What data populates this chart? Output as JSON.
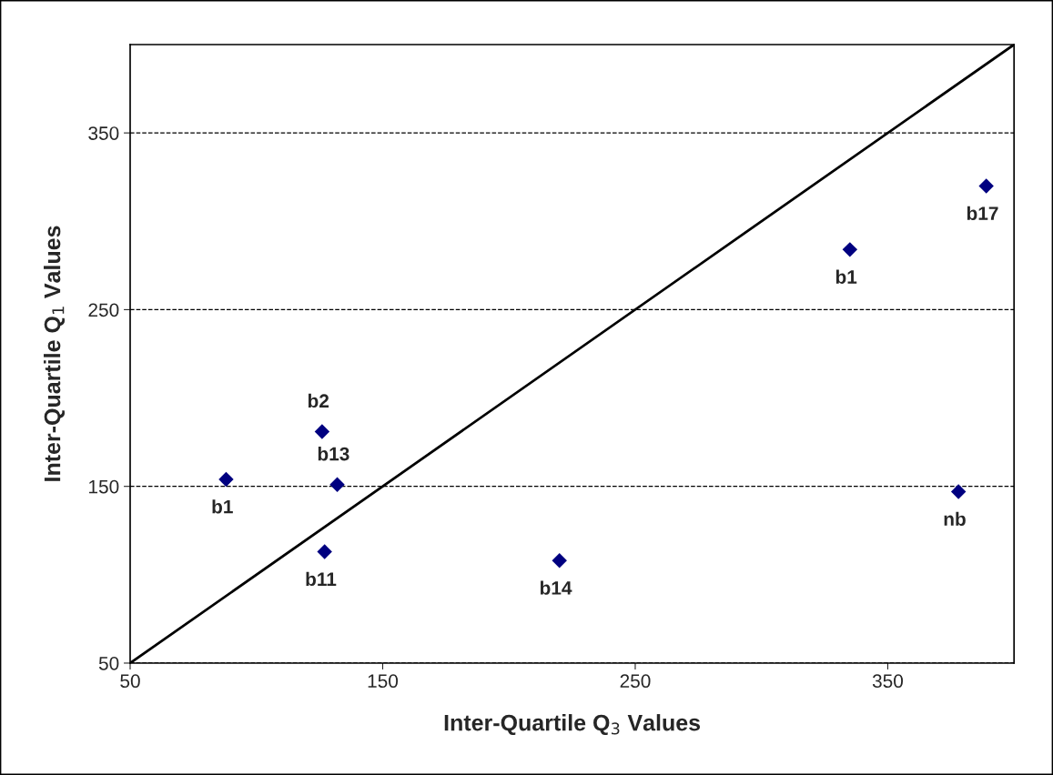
{
  "chart_data": {
    "type": "scatter",
    "xlabel": "Inter-Quartile Q$_{3}$ Values",
    "ylabel": "Inter-Quartile Q$_{1}$ Values",
    "xlim": [
      50,
      400
    ],
    "ylim": [
      50,
      400
    ],
    "xticks": [
      50,
      150,
      250,
      350
    ],
    "yticks": [
      50,
      150,
      250,
      350
    ],
    "grid": "y",
    "series": [
      {
        "color": "#000080",
        "marker": "diamond",
        "x": [
          88,
          126,
          132,
          127,
          220,
          335,
          389,
          378
        ],
        "values": [
          154,
          181,
          151,
          113,
          108,
          284,
          320,
          147
        ]
      },
      {
        "type": "line",
        "color": "#000000",
        "line_style": "solid",
        "x": [
          50,
          400
        ],
        "values": [
          50,
          400
        ]
      }
    ],
    "annotations": [
      {
        "text": "b1",
        "x": 88,
        "y": 154
      },
      {
        "text": "b2",
        "x": 126,
        "y": 181
      },
      {
        "text": "b13",
        "x": 132,
        "y": 151
      },
      {
        "text": "b11",
        "x": 127,
        "y": 113
      },
      {
        "text": "b14",
        "x": 220,
        "y": 108
      },
      {
        "text": "b1",
        "x": 335,
        "y": 284
      },
      {
        "text": "b17",
        "x": 389,
        "y": 320
      },
      {
        "text": "nb",
        "x": 378,
        "y": 147
      }
    ]
  }
}
